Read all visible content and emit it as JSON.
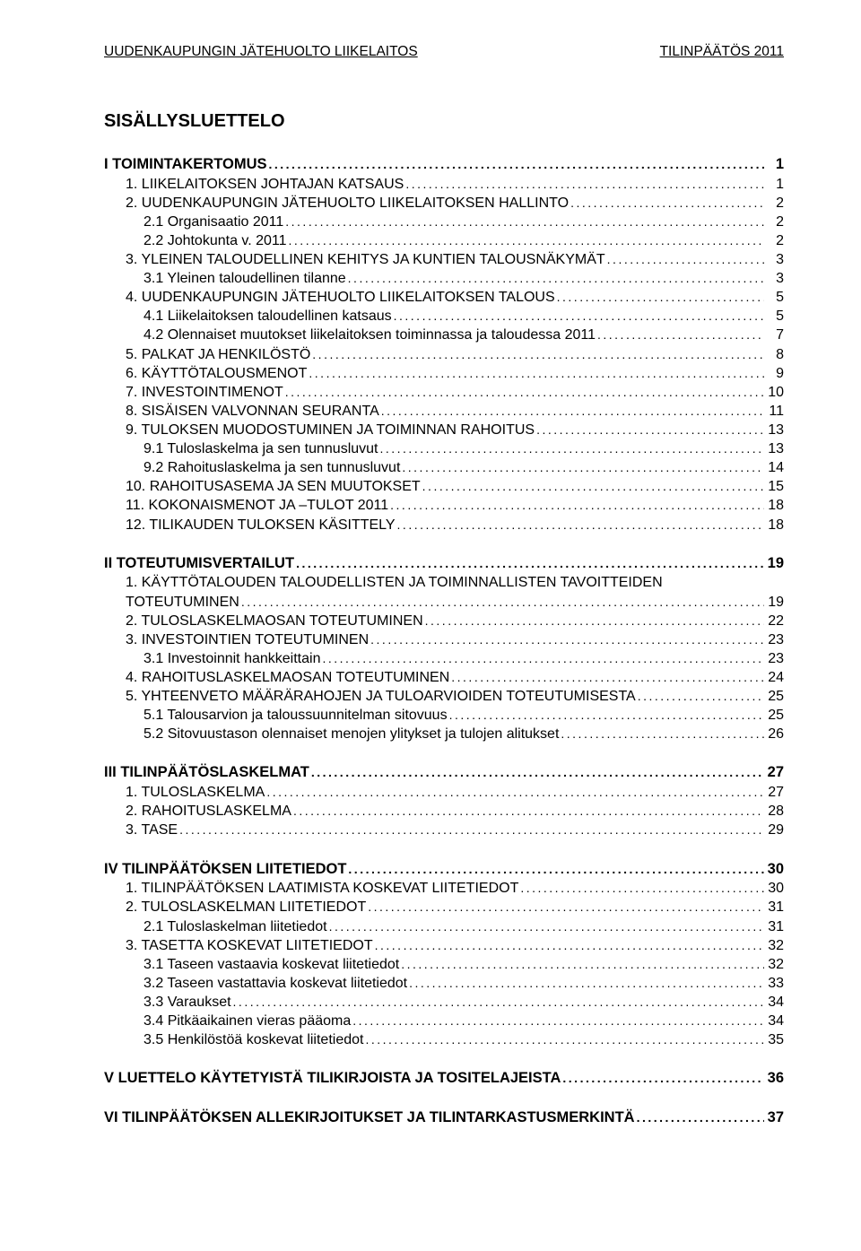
{
  "header": {
    "left": "UUDENKAUPUNGIN JÄTEHUOLTO LIIKELAITOS",
    "right": "TILINPÄÄTÖS 2011"
  },
  "title": "SISÄLLYSLUETTELO",
  "sections": [
    {
      "heading": {
        "label": "I TOIMINTAKERTOMUS",
        "page": "1"
      },
      "items": [
        {
          "indent": 1,
          "label": "1. LIIKELAITOKSEN JOHTAJAN KATSAUS",
          "page": "1"
        },
        {
          "indent": 1,
          "label": "2. UUDENKAUPUNGIN JÄTEHUOLTO LIIKELAITOKSEN HALLINTO",
          "page": "2"
        },
        {
          "indent": 2,
          "label": "2.1 Organisaatio 2011",
          "page": "2"
        },
        {
          "indent": 2,
          "label": "2.2  Johtokunta v. 2011",
          "page": "2"
        },
        {
          "indent": 1,
          "label": "3. YLEINEN TALOUDELLINEN KEHITYS JA KUNTIEN TALOUSNÄKYMÄT",
          "page": "3"
        },
        {
          "indent": 2,
          "label": "3.1 Yleinen taloudellinen tilanne",
          "page": "3"
        },
        {
          "indent": 1,
          "label": "4. UUDENKAUPUNGIN JÄTEHUOLTO LIIKELAITOKSEN TALOUS",
          "page": "5"
        },
        {
          "indent": 2,
          "label": "4.1 Liikelaitoksen taloudellinen katsaus",
          "page": "5"
        },
        {
          "indent": 2,
          "label": "4.2 Olennaiset muutokset liikelaitoksen toiminnassa ja taloudessa 2011",
          "page": "7"
        },
        {
          "indent": 1,
          "label": "5. PALKAT JA HENKILÖSTÖ",
          "page": "8"
        },
        {
          "indent": 1,
          "label": "6. KÄYTTÖTALOUSMENOT",
          "page": "9"
        },
        {
          "indent": 1,
          "label": "7. INVESTOINTIMENOT",
          "page": "10"
        },
        {
          "indent": 1,
          "label": "8.  SISÄISEN VALVONNAN SEURANTA",
          "page": "11"
        },
        {
          "indent": 1,
          "label": "9. TULOKSEN MUODOSTUMINEN JA TOIMINNAN RAHOITUS",
          "page": "13"
        },
        {
          "indent": 2,
          "label": "9.1 Tuloslaskelma ja sen tunnusluvut",
          "page": "13"
        },
        {
          "indent": 2,
          "label": "9.2 Rahoituslaskelma ja sen tunnusluvut",
          "page": "14"
        },
        {
          "indent": 1,
          "label": "10. RAHOITUSASEMA JA SEN MUUTOKSET",
          "page": "15"
        },
        {
          "indent": 1,
          "label": "11. KOKONAISMENOT JA –TULOT 2011",
          "page": "18"
        },
        {
          "indent": 1,
          "label": "12. TILIKAUDEN TULOKSEN KÄSITTELY",
          "page": "18"
        }
      ]
    },
    {
      "heading": {
        "label": "II TOTEUTUMISVERTAILUT",
        "page": "19"
      },
      "items": [
        {
          "indent": 1,
          "label": "1. KÄYTTÖTALOUDEN TALOUDELLISTEN JA TOIMINNALLISTEN TAVOITTEIDEN",
          "cont": "TOTEUTUMINEN",
          "page": "19"
        },
        {
          "indent": 1,
          "label": "2. TULOSLASKELMAOSAN TOTEUTUMINEN",
          "page": "22"
        },
        {
          "indent": 1,
          "label": "3. INVESTOINTIEN TOTEUTUMINEN",
          "page": "23"
        },
        {
          "indent": 2,
          "label": "3.1 Investoinnit hankkeittain",
          "page": "23"
        },
        {
          "indent": 1,
          "label": "4. RAHOITUSLASKELMAOSAN TOTEUTUMINEN",
          "page": "24"
        },
        {
          "indent": 1,
          "label": "5. YHTEENVETO MÄÄRÄRAHOJEN JA TULOARVIOIDEN TOTEUTUMISESTA",
          "page": "25"
        },
        {
          "indent": 2,
          "label": "5.1 Talousarvion ja taloussuunnitelman sitovuus",
          "page": "25"
        },
        {
          "indent": 2,
          "label": "5.2 Sitovuustason olennaiset menojen ylitykset ja tulojen alitukset",
          "page": "26"
        }
      ]
    },
    {
      "heading": {
        "label": "III TILINPÄÄTÖSLASKELMAT",
        "page": "27"
      },
      "items": [
        {
          "indent": 1,
          "label": "1. TULOSLASKELMA",
          "page": "27"
        },
        {
          "indent": 1,
          "label": "2. RAHOITUSLASKELMA",
          "page": "28"
        },
        {
          "indent": 1,
          "label": "3. TASE",
          "page": "29"
        }
      ]
    },
    {
      "heading": {
        "label": "IV TILINPÄÄTÖKSEN LIITETIEDOT",
        "page": "30"
      },
      "items": [
        {
          "indent": 1,
          "label": "1. TILINPÄÄTÖKSEN LAATIMISTA KOSKEVAT LIITETIEDOT",
          "page": "30"
        },
        {
          "indent": 1,
          "label": "2. TULOSLASKELMAN LIITETIEDOT",
          "page": "31"
        },
        {
          "indent": 2,
          "label": "2.1 Tuloslaskelman liitetiedot",
          "page": "31"
        },
        {
          "indent": 1,
          "label": "3. TASETTA KOSKEVAT LIITETIEDOT",
          "page": "32"
        },
        {
          "indent": 2,
          "label": "3.1 Taseen vastaavia koskevat liitetiedot",
          "page": "32"
        },
        {
          "indent": 2,
          "label": "3.2 Taseen vastattavia koskevat liitetiedot",
          "page": "33"
        },
        {
          "indent": 2,
          "label": "3.3 Varaukset",
          "page": "34"
        },
        {
          "indent": 2,
          "label": "3.4 Pitkäaikainen vieras pääoma",
          "page": "34"
        },
        {
          "indent": 2,
          "label": "3.5 Henkilöstöä koskevat liitetiedot",
          "page": "35"
        }
      ]
    },
    {
      "heading": {
        "label": "V LUETTELO KÄYTETYISTÄ TILIKIRJOISTA JA TOSITELAJEISTA",
        "page": "36"
      },
      "items": []
    },
    {
      "heading": {
        "label": "VI TILINPÄÄTÖKSEN ALLEKIRJOITUKSET JA  TILINTARKASTUSMERKINTÄ",
        "page": "37"
      },
      "items": []
    }
  ]
}
